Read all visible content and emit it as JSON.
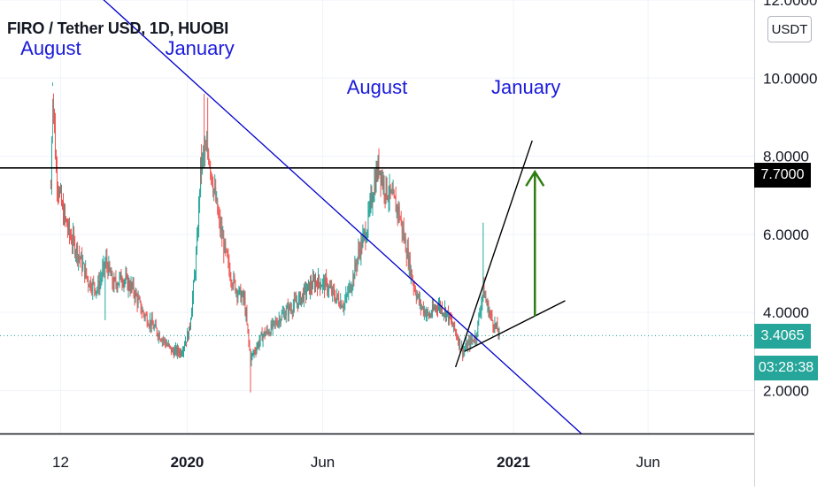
{
  "header": {
    "title": "FIRO / Tether USD, 1D, HUOBI",
    "currency_label": "USDT"
  },
  "price_tags": {
    "resistance": "7.7000",
    "current": "3.4065",
    "countdown": "03:28:38"
  },
  "annotations": [
    {
      "text": "August",
      "x": "2019-08-01",
      "y": 10.6
    },
    {
      "text": "January",
      "x": "2020-01-15",
      "y": 10.6
    },
    {
      "text": "August",
      "x": "2020-08-01",
      "y": 9.6
    },
    {
      "text": "January",
      "x": "2021-01-15",
      "y": 9.6
    }
  ],
  "colors": {
    "up": "#26a69a",
    "down": "#ef5350",
    "trendline": "#0000cc",
    "annotation": "#1a1adb",
    "arrow": "#2e7d12",
    "resistance": "#000000"
  },
  "chart_data": {
    "type": "candlestick",
    "title": "FIRO / Tether USD, 1D, HUOBI",
    "y_axis": {
      "ticks": [
        "12.0000",
        "10.0000",
        "8.0000",
        "6.0000",
        "4.0000",
        "2.0000"
      ],
      "range": [
        0.9,
        12.0
      ]
    },
    "x_axis": {
      "ticks": [
        {
          "label": "12",
          "date": "2019-08-12",
          "bold": false
        },
        {
          "label": "2020",
          "date": "2020-01-01",
          "bold": true
        },
        {
          "label": "Jun",
          "date": "2020-06-01",
          "bold": false
        },
        {
          "label": "2021",
          "date": "2021-01-01",
          "bold": true
        },
        {
          "label": "Jun",
          "date": "2021-06-01",
          "bold": false
        }
      ],
      "range": [
        "2019-06-05",
        "2021-09-28"
      ]
    },
    "horizontal_lines": [
      {
        "name": "resistance",
        "y": 7.7
      },
      {
        "name": "current price",
        "y": 3.4065,
        "style": "dotted"
      }
    ],
    "trendlines": [
      {
        "name": "descending",
        "from": {
          "x": "2019-09-15",
          "y": 12.3
        },
        "to": {
          "x": "2021-03-18",
          "y": 0.9
        }
      },
      {
        "name": "wedge-upper",
        "from": {
          "x": "2020-10-28",
          "y": 2.6
        },
        "to": {
          "x": "2021-01-22",
          "y": 8.4
        }
      },
      {
        "name": "wedge-lower",
        "from": {
          "x": "2020-11-07",
          "y": 3.0
        },
        "to": {
          "x": "2021-02-28",
          "y": 4.3
        }
      }
    ],
    "arrow": {
      "x": "2021-01-25",
      "from_y": 3.9,
      "to_y": 7.6
    },
    "price_path": [
      [
        "2019-08-01",
        7.2
      ],
      [
        "2019-08-03",
        9.8
      ],
      [
        "2019-08-07",
        7.6
      ],
      [
        "2019-08-14",
        6.6
      ],
      [
        "2019-08-22",
        6.0
      ],
      [
        "2019-09-01",
        5.5
      ],
      [
        "2019-09-12",
        4.8
      ],
      [
        "2019-09-22",
        4.6
      ],
      [
        "2019-10-02",
        5.3
      ],
      [
        "2019-10-10",
        4.7
      ],
      [
        "2019-10-20",
        4.9
      ],
      [
        "2019-11-01",
        4.6
      ],
      [
        "2019-11-12",
        4.0
      ],
      [
        "2019-11-25",
        3.6
      ],
      [
        "2019-12-05",
        3.3
      ],
      [
        "2019-12-15",
        3.0
      ],
      [
        "2019-12-25",
        3.0
      ],
      [
        "2020-01-03",
        3.5
      ],
      [
        "2020-01-08",
        4.6
      ],
      [
        "2020-01-12",
        5.7
      ],
      [
        "2020-01-16",
        7.7
      ],
      [
        "2020-01-20",
        8.0
      ],
      [
        "2020-01-25",
        8.1
      ],
      [
        "2020-01-30",
        7.3
      ],
      [
        "2020-02-05",
        6.4
      ],
      [
        "2020-02-12",
        5.6
      ],
      [
        "2020-02-18",
        5.0
      ],
      [
        "2020-02-25",
        4.6
      ],
      [
        "2020-03-05",
        4.3
      ],
      [
        "2020-03-12",
        2.8
      ],
      [
        "2020-03-16",
        3.0
      ],
      [
        "2020-03-25",
        3.4
      ],
      [
        "2020-04-05",
        3.6
      ],
      [
        "2020-04-15",
        3.9
      ],
      [
        "2020-04-25",
        4.1
      ],
      [
        "2020-05-05",
        4.3
      ],
      [
        "2020-05-15",
        4.6
      ],
      [
        "2020-05-25",
        4.8
      ],
      [
        "2020-06-05",
        4.7
      ],
      [
        "2020-06-15",
        4.4
      ],
      [
        "2020-06-25",
        4.2
      ],
      [
        "2020-07-05",
        4.9
      ],
      [
        "2020-07-12",
        5.6
      ],
      [
        "2020-07-20",
        6.1
      ],
      [
        "2020-07-28",
        7.2
      ],
      [
        "2020-08-03",
        7.8
      ],
      [
        "2020-08-08",
        7.3
      ],
      [
        "2020-08-15",
        7.0
      ],
      [
        "2020-08-25",
        6.6
      ],
      [
        "2020-09-03",
        5.6
      ],
      [
        "2020-09-10",
        4.8
      ],
      [
        "2020-09-18",
        4.2
      ],
      [
        "2020-09-28",
        3.9
      ],
      [
        "2020-10-08",
        4.2
      ],
      [
        "2020-10-18",
        4.0
      ],
      [
        "2020-10-28",
        3.5
      ],
      [
        "2020-11-05",
        3.0
      ],
      [
        "2020-11-12",
        3.2
      ],
      [
        "2020-11-20",
        3.4
      ],
      [
        "2020-11-28",
        4.6
      ],
      [
        "2020-12-02",
        4.2
      ],
      [
        "2020-12-08",
        3.8
      ],
      [
        "2020-12-16",
        3.45
      ]
    ]
  }
}
